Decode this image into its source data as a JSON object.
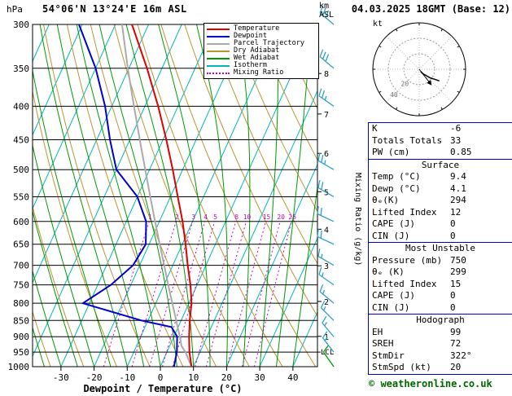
{
  "header": {
    "pressure_unit": "hPa",
    "station": "54°06'N 13°24'E 16m ASL",
    "datetime": "04.03.2025 18GMT (Base: 12)",
    "altitude_unit_line1": "km",
    "altitude_unit_line2": "ASL"
  },
  "legend": {
    "items": [
      {
        "label": "Temperature",
        "color": "#dd0000",
        "style": "solid"
      },
      {
        "label": "Dewpoint",
        "color": "#0000cc",
        "style": "solid"
      },
      {
        "label": "Parcel Trajectory",
        "color": "#aaaaaa",
        "style": "solid"
      },
      {
        "label": "Dry Adiabat",
        "color": "#bc9434",
        "style": "solid"
      },
      {
        "label": "Wet Adiabat",
        "color": "#009900",
        "style": "solid"
      },
      {
        "label": "Isotherm",
        "color": "#00b8b8",
        "style": "solid"
      },
      {
        "label": "Mixing Ratio",
        "color": "#cc00cc",
        "style": "dotted"
      }
    ]
  },
  "chart_data": {
    "type": "skew-t-log-p-sounding",
    "xlabel": "Dewpoint / Temperature (°C)",
    "pressure_ticks": [
      300,
      350,
      400,
      450,
      500,
      550,
      600,
      650,
      700,
      750,
      800,
      850,
      900,
      950,
      1000
    ],
    "temp_ticks": [
      -30,
      -20,
      -10,
      0,
      10,
      20,
      30,
      40
    ],
    "km_ticks": [
      1,
      2,
      3,
      4,
      5,
      6,
      7,
      8
    ],
    "lcl": {
      "label": "LCL",
      "pressure": 950
    },
    "right_axis_label": "Mixing Ratio (g/kg)",
    "mixing_ratio_lines": [
      1,
      2,
      3,
      4,
      5,
      8,
      10,
      15,
      20,
      25
    ],
    "isotherm_step_c": 10,
    "sounding": {
      "temperature": {
        "pressure_hpa": [
          1000,
          950,
          900,
          850,
          800,
          750,
          700,
          650,
          600,
          550,
          500,
          450,
          400,
          350,
          300
        ],
        "temp_c": [
          9.4,
          6.8,
          4.6,
          2.6,
          0.8,
          -2.0,
          -5.5,
          -9.0,
          -13.0,
          -17.8,
          -23.0,
          -29.0,
          -36.0,
          -44.5,
          -55.0
        ]
      },
      "dewpoint": {
        "pressure_hpa": [
          1000,
          950,
          900,
          870,
          850,
          800,
          750,
          700,
          650,
          600,
          550,
          500,
          450,
          400,
          350,
          300
        ],
        "temp_c": [
          4.1,
          3.0,
          1.0,
          -2.0,
          -12.0,
          -32.0,
          -26.0,
          -22.0,
          -21.0,
          -24.0,
          -30.0,
          -40.0,
          -46.0,
          -52.0,
          -60.0,
          -71.0
        ]
      },
      "parcel": {
        "pressure_hpa": [
          1000,
          950,
          930,
          900,
          850,
          800,
          750,
          700,
          650,
          600,
          550,
          500,
          450,
          400,
          350,
          300
        ],
        "temp_c": [
          9.4,
          5.6,
          3.6,
          1.8,
          -1.5,
          -5.0,
          -8.7,
          -12.6,
          -16.8,
          -21.3,
          -26.1,
          -31.3,
          -37.0,
          -43.3,
          -50.3,
          -58.0
        ]
      }
    },
    "wind_barbs": [
      {
        "pressure": 300,
        "dir_deg": 310,
        "speed_kt": 30
      },
      {
        "pressure": 350,
        "dir_deg": 310,
        "speed_kt": 30
      },
      {
        "pressure": 400,
        "dir_deg": 305,
        "speed_kt": 25
      },
      {
        "pressure": 500,
        "dir_deg": 300,
        "speed_kt": 25
      },
      {
        "pressure": 550,
        "dir_deg": 300,
        "speed_kt": 20
      },
      {
        "pressure": 600,
        "dir_deg": 295,
        "speed_kt": 20
      },
      {
        "pressure": 650,
        "dir_deg": 295,
        "speed_kt": 20
      },
      {
        "pressure": 700,
        "dir_deg": 300,
        "speed_kt": 15
      },
      {
        "pressure": 750,
        "dir_deg": 305,
        "speed_kt": 15
      },
      {
        "pressure": 800,
        "dir_deg": 310,
        "speed_kt": 15
      },
      {
        "pressure": 850,
        "dir_deg": 315,
        "speed_kt": 15
      },
      {
        "pressure": 900,
        "dir_deg": 320,
        "speed_kt": 15
      },
      {
        "pressure": 950,
        "dir_deg": 322,
        "speed_kt": 15
      },
      {
        "pressure": 1000,
        "dir_deg": 325,
        "speed_kt": 10,
        "surface": true
      }
    ]
  },
  "hodograph": {
    "unit": "kt",
    "max_kt": 60,
    "ring_labels": [
      {
        "value": "20",
        "radius_kt": 20
      },
      {
        "value": "40",
        "radius_kt": 40
      }
    ],
    "trace_uv_kt": [
      [
        2,
        -3
      ],
      [
        5,
        -6
      ],
      [
        9,
        -8
      ],
      [
        14,
        -11
      ],
      [
        20,
        -13
      ],
      [
        26,
        -15
      ]
    ],
    "storm_motion": {
      "dir_deg": 322,
      "speed_kt": 20
    }
  },
  "table": {
    "sections": [
      {
        "header": "",
        "rows": [
          [
            "K",
            "-6"
          ],
          [
            "Totals Totals",
            "33"
          ],
          [
            "PW (cm)",
            "0.85"
          ]
        ]
      },
      {
        "header": "Surface",
        "rows": [
          [
            "Temp (°C)",
            "9.4"
          ],
          [
            "Dewp (°C)",
            "4.1"
          ],
          [
            "θₑ(K)",
            "294"
          ],
          [
            "Lifted Index",
            "12"
          ],
          [
            "CAPE (J)",
            "0"
          ],
          [
            "CIN (J)",
            "0"
          ]
        ]
      },
      {
        "header": "Most Unstable",
        "rows": [
          [
            "Pressure (mb)",
            "750"
          ],
          [
            "θₑ (K)",
            "299"
          ],
          [
            "Lifted Index",
            "15"
          ],
          [
            "CAPE (J)",
            "0"
          ],
          [
            "CIN (J)",
            "0"
          ]
        ]
      },
      {
        "header": "Hodograph",
        "rows": [
          [
            "EH",
            "99"
          ],
          [
            "SREH",
            "72"
          ],
          [
            "StmDir",
            "322°"
          ],
          [
            "StmSpd (kt)",
            "20"
          ]
        ]
      }
    ]
  },
  "footer": {
    "copyright": "© weatheronline.co.uk"
  },
  "colors": {
    "temperature": "#dd0000",
    "dewpoint": "#0000cc",
    "parcel": "#aaaaaa",
    "dry_adiabat": "#bc9434",
    "wet_adiabat": "#009900",
    "isotherm": "#00b8b8",
    "mixing_ratio": "#cc00cc",
    "wind_barb": "#2da0c8",
    "wind_barb_surface": "#009900",
    "grid": "#000000",
    "table_border": "#0000cc",
    "copyright": "#006600"
  }
}
